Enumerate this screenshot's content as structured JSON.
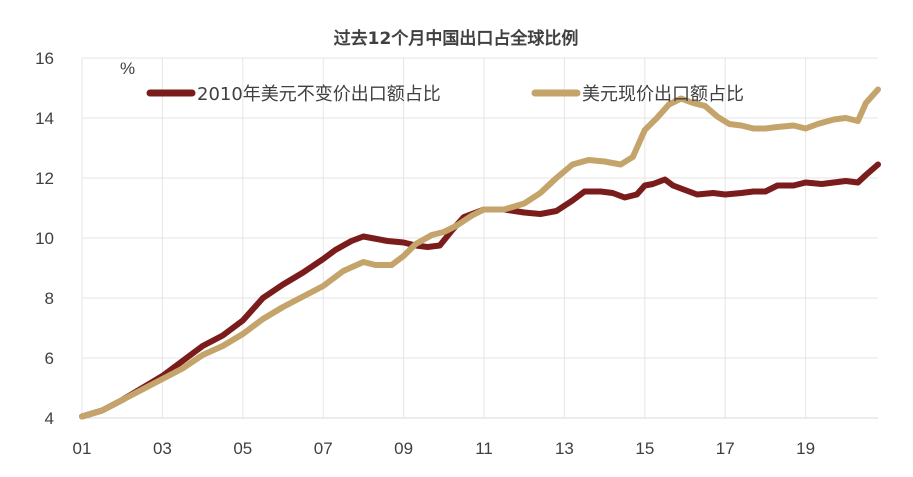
{
  "chart_data": {
    "type": "line",
    "title": "过去12个月中国出口占全球比例",
    "unit_label": "%",
    "ylim": [
      4,
      16
    ],
    "y_ticks": [
      "4",
      "6",
      "8",
      "10",
      "12",
      "14",
      "16"
    ],
    "x_ticks": [
      "01",
      "03",
      "05",
      "07",
      "09",
      "11",
      "13",
      "15",
      "17",
      "19"
    ],
    "xlim": [
      2001,
      2020.8
    ],
    "grid": true,
    "legend_position": "top",
    "series": [
      {
        "name": "2010年美元不变价出口额占比",
        "color": "#7b1c1c",
        "points": [
          [
            2001.0,
            4.05
          ],
          [
            2001.5,
            4.25
          ],
          [
            2002.0,
            4.6
          ],
          [
            2002.5,
            5.0
          ],
          [
            2003.0,
            5.4
          ],
          [
            2003.5,
            5.9
          ],
          [
            2004.0,
            6.4
          ],
          [
            2004.5,
            6.75
          ],
          [
            2005.0,
            7.25
          ],
          [
            2005.5,
            8.0
          ],
          [
            2006.0,
            8.45
          ],
          [
            2006.5,
            8.85
          ],
          [
            2007.0,
            9.3
          ],
          [
            2007.3,
            9.6
          ],
          [
            2007.7,
            9.9
          ],
          [
            2008.0,
            10.05
          ],
          [
            2008.2,
            10.0
          ],
          [
            2008.6,
            9.9
          ],
          [
            2009.0,
            9.85
          ],
          [
            2009.3,
            9.75
          ],
          [
            2009.6,
            9.7
          ],
          [
            2009.9,
            9.75
          ],
          [
            2010.2,
            10.25
          ],
          [
            2010.5,
            10.7
          ],
          [
            2011.0,
            10.95
          ],
          [
            2011.5,
            10.95
          ],
          [
            2012.0,
            10.85
          ],
          [
            2012.4,
            10.8
          ],
          [
            2012.8,
            10.9
          ],
          [
            2013.2,
            11.25
          ],
          [
            2013.5,
            11.55
          ],
          [
            2013.9,
            11.55
          ],
          [
            2014.2,
            11.5
          ],
          [
            2014.5,
            11.35
          ],
          [
            2014.8,
            11.45
          ],
          [
            2015.0,
            11.75
          ],
          [
            2015.2,
            11.8
          ],
          [
            2015.5,
            11.95
          ],
          [
            2015.7,
            11.75
          ],
          [
            2016.0,
            11.6
          ],
          [
            2016.3,
            11.45
          ],
          [
            2016.7,
            11.5
          ],
          [
            2017.0,
            11.45
          ],
          [
            2017.4,
            11.5
          ],
          [
            2017.7,
            11.55
          ],
          [
            2018.0,
            11.55
          ],
          [
            2018.3,
            11.75
          ],
          [
            2018.7,
            11.75
          ],
          [
            2019.0,
            11.85
          ],
          [
            2019.4,
            11.8
          ],
          [
            2019.7,
            11.85
          ],
          [
            2020.0,
            11.9
          ],
          [
            2020.3,
            11.85
          ],
          [
            2020.5,
            12.1
          ],
          [
            2020.8,
            12.45
          ]
        ]
      },
      {
        "name": "美元现价出口额占比",
        "color": "#c4a46a",
        "points": [
          [
            2001.0,
            4.05
          ],
          [
            2001.5,
            4.25
          ],
          [
            2002.0,
            4.6
          ],
          [
            2002.5,
            4.95
          ],
          [
            2003.0,
            5.3
          ],
          [
            2003.5,
            5.65
          ],
          [
            2004.0,
            6.1
          ],
          [
            2004.5,
            6.4
          ],
          [
            2005.0,
            6.8
          ],
          [
            2005.5,
            7.3
          ],
          [
            2006.0,
            7.7
          ],
          [
            2006.5,
            8.05
          ],
          [
            2007.0,
            8.4
          ],
          [
            2007.5,
            8.9
          ],
          [
            2008.0,
            9.2
          ],
          [
            2008.3,
            9.1
          ],
          [
            2008.7,
            9.1
          ],
          [
            2009.0,
            9.4
          ],
          [
            2009.3,
            9.8
          ],
          [
            2009.7,
            10.1
          ],
          [
            2010.0,
            10.2
          ],
          [
            2010.3,
            10.4
          ],
          [
            2010.7,
            10.75
          ],
          [
            2011.0,
            10.95
          ],
          [
            2011.5,
            10.95
          ],
          [
            2012.0,
            11.15
          ],
          [
            2012.4,
            11.5
          ],
          [
            2012.8,
            12.0
          ],
          [
            2013.2,
            12.45
          ],
          [
            2013.6,
            12.6
          ],
          [
            2014.0,
            12.55
          ],
          [
            2014.4,
            12.45
          ],
          [
            2014.7,
            12.7
          ],
          [
            2015.0,
            13.6
          ],
          [
            2015.3,
            14.0
          ],
          [
            2015.6,
            14.45
          ],
          [
            2015.9,
            14.65
          ],
          [
            2016.2,
            14.5
          ],
          [
            2016.5,
            14.4
          ],
          [
            2016.8,
            14.05
          ],
          [
            2017.1,
            13.8
          ],
          [
            2017.4,
            13.75
          ],
          [
            2017.7,
            13.65
          ],
          [
            2018.0,
            13.65
          ],
          [
            2018.3,
            13.7
          ],
          [
            2018.7,
            13.75
          ],
          [
            2019.0,
            13.65
          ],
          [
            2019.3,
            13.8
          ],
          [
            2019.7,
            13.95
          ],
          [
            2020.0,
            14.0
          ],
          [
            2020.3,
            13.9
          ],
          [
            2020.5,
            14.5
          ],
          [
            2020.8,
            14.95
          ]
        ]
      }
    ]
  }
}
